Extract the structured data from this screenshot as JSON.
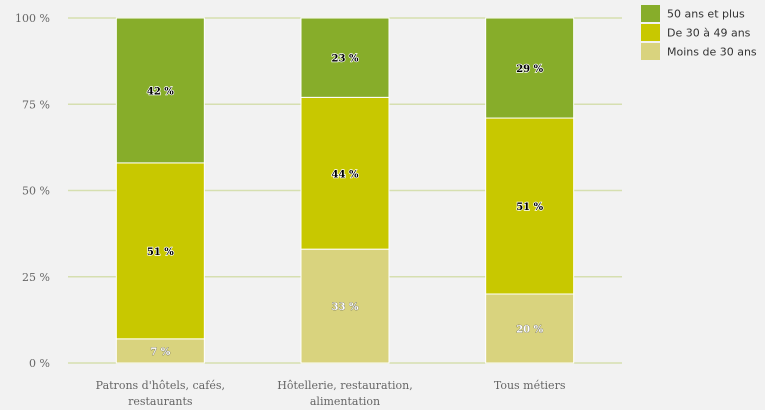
{
  "chart_data": {
    "type": "bar",
    "stacked": true,
    "categories": [
      [
        "Patrons d'hôtels, cafés,",
        "restaurants"
      ],
      [
        "Hôtellerie, restauration,",
        "alimentation"
      ],
      [
        "Tous métiers"
      ]
    ],
    "series": [
      {
        "name": "Moins de 30 ans",
        "values": [
          7,
          33,
          20
        ],
        "color": "#d9d37e",
        "labels": [
          "7 %",
          "33 %",
          "20 %"
        ]
      },
      {
        "name": "De 30 à 49 ans",
        "values": [
          51,
          44,
          51
        ],
        "color": "#c8c800",
        "labels": [
          "51 %",
          "44 %",
          "51 %"
        ]
      },
      {
        "name": "50 ans et plus",
        "values": [
          42,
          23,
          29
        ],
        "color": "#87ad2a",
        "labels": [
          "42 %",
          "23 %",
          "29 %"
        ]
      }
    ],
    "ylim": [
      0,
      100
    ],
    "yticks": [
      0,
      25,
      50,
      75,
      100
    ],
    "ytick_labels": [
      "0 %",
      "25 %",
      "50 %",
      "75 %",
      "100 %"
    ],
    "grid": true,
    "legend": "top-right",
    "legend_order": [
      "50 ans et plus",
      "De 30 à 49 ans",
      "Moins de 30 ans"
    ],
    "gridline_color": "#d6dfb0"
  }
}
